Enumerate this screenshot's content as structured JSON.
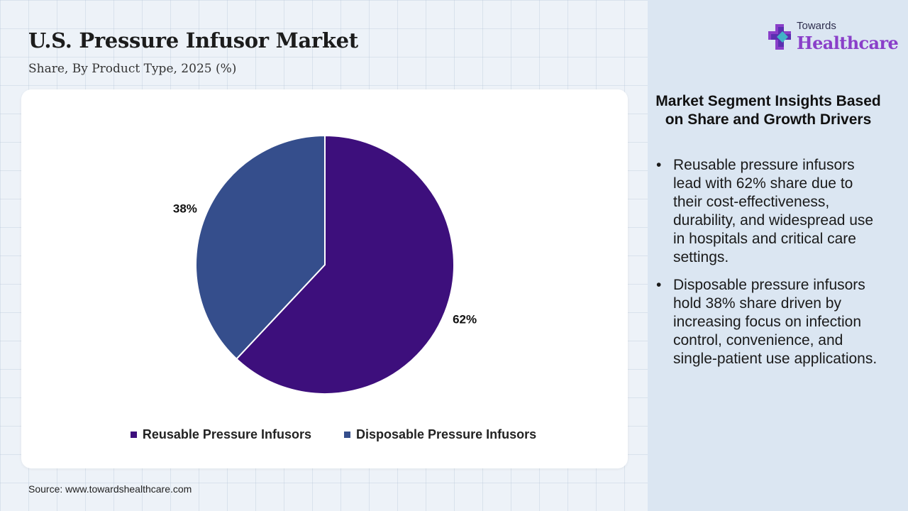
{
  "header": {
    "title": "U.S. Pressure Infusor Market",
    "subtitle": "Share, By Product Type, 2025 (%)"
  },
  "chart_data": {
    "type": "pie",
    "categories": [
      "Reusable Pressure Infusors",
      "Disposable Pressure Infusors"
    ],
    "values": [
      62,
      38
    ],
    "data_labels": [
      "62%",
      "38%"
    ],
    "colors": [
      "#3d0f7c",
      "#354e8c"
    ],
    "legend_position": "bottom"
  },
  "source": "Source: www.towardshealthcare.com",
  "logo": {
    "top_text": "Towards",
    "bottom_text": "Healthcare",
    "icon": "medical-cross-icon"
  },
  "insights": {
    "title": "Market Segment Insights Based on Share and Growth Drivers",
    "items": [
      "Reusable pressure infusors lead with 62% share due to their cost-effectiveness, durability, and widespread use in hospitals and critical care settings.",
      "Disposable pressure infusors hold 38% share driven by increasing focus on infection control, convenience, and single-patient use applications."
    ]
  }
}
